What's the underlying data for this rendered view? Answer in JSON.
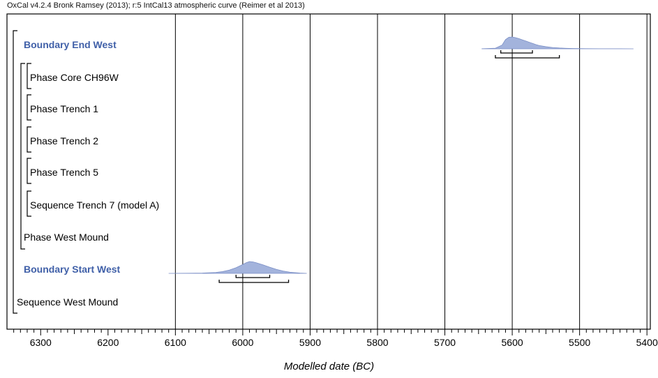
{
  "header": "OxCal v4.2.4 Bronk Ramsey (2013); r:5 IntCal13 atmospheric curve (Reimer et al 2013)",
  "chart_data": {
    "type": "density",
    "xlabel": "Modelled date (BC)",
    "xlim": [
      6350,
      5395
    ],
    "x_axis_reversed": true,
    "ticks": [
      6300,
      6200,
      6100,
      6000,
      5900,
      5800,
      5700,
      5600,
      5500,
      5400
    ],
    "tick_labels": [
      "6300",
      "6200",
      "6100",
      "6000",
      "5900",
      "5800",
      "5700",
      "5600",
      "5500",
      "5400"
    ],
    "vertical_gridlines": [
      6100,
      6000,
      5900,
      5800,
      5700,
      5600,
      5500,
      5400
    ],
    "rows": [
      {
        "label": "Boundary End West",
        "kind": "boundary",
        "indent": 0,
        "distribution": {
          "x": [
            5645,
            5625,
            5615,
            5610,
            5605,
            5600,
            5595,
            5590,
            5585,
            5580,
            5575,
            5570,
            5565,
            5560,
            5550,
            5540,
            5530,
            5520,
            5510,
            5490,
            5470,
            5440,
            5420
          ],
          "y": [
            0.01,
            0.05,
            0.32,
            0.78,
            0.98,
            1.0,
            0.94,
            0.86,
            0.76,
            0.66,
            0.56,
            0.46,
            0.36,
            0.28,
            0.18,
            0.11,
            0.07,
            0.045,
            0.03,
            0.015,
            0.008,
            0.003,
            0.0
          ]
        },
        "range_68": [
          5617,
          5570
        ],
        "range_95": [
          5625,
          5530
        ]
      },
      {
        "label": "Phase Core CH96W",
        "kind": "phase",
        "indent": 2
      },
      {
        "label": "Phase Trench 1",
        "kind": "phase",
        "indent": 2
      },
      {
        "label": "Phase Trench 2",
        "kind": "phase",
        "indent": 2
      },
      {
        "label": "Phase Trench 5",
        "kind": "phase",
        "indent": 2
      },
      {
        "label": "Sequence Trench 7 (model A)",
        "kind": "phase",
        "indent": 2
      },
      {
        "label": "Phase West Mound",
        "kind": "phase",
        "indent": 1
      },
      {
        "label": "Boundary Start West",
        "kind": "boundary",
        "indent": 0,
        "distribution": {
          "x": [
            6110,
            6080,
            6060,
            6040,
            6030,
            6020,
            6010,
            6000,
            5995,
            5990,
            5985,
            5980,
            5970,
            5960,
            5950,
            5940,
            5930,
            5915,
            5905
          ],
          "y": [
            0.0,
            0.01,
            0.03,
            0.08,
            0.15,
            0.28,
            0.48,
            0.75,
            0.9,
            1.0,
            0.97,
            0.9,
            0.72,
            0.52,
            0.34,
            0.2,
            0.1,
            0.03,
            0.0
          ]
        },
        "range_68": [
          6010,
          5960
        ],
        "range_95": [
          6035,
          5932
        ]
      },
      {
        "label": "Sequence West Mound",
        "kind": "phase",
        "indent": 0
      }
    ],
    "colors": {
      "fill": "#a3b3dc",
      "stroke": "#7b8fc6",
      "boundary_label": "#4060a8",
      "axis": "#000000"
    }
  }
}
